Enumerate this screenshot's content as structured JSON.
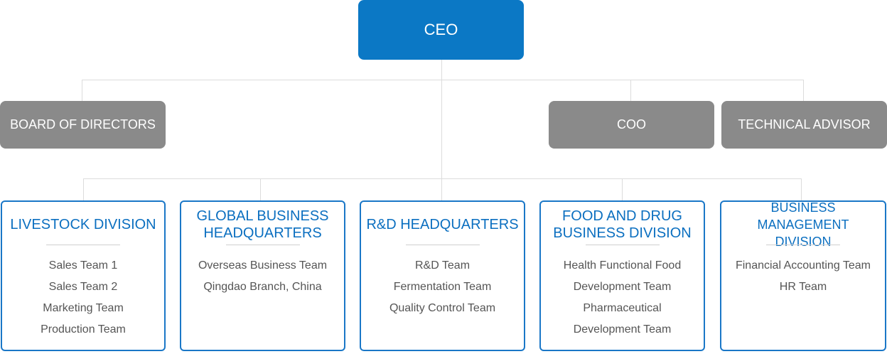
{
  "ceo": "CEO",
  "board": "BOARD OF DIRECTORS",
  "coo": "COO",
  "advisor": "TECHNICAL ADVISOR",
  "divisions": [
    {
      "title_lines": [
        "LIVESTOCK DIVISION"
      ],
      "teams": [
        "Sales Team 1",
        "Sales Team 2",
        "Marketing Team",
        "Production Team"
      ]
    },
    {
      "title_lines": [
        "GLOBAL BUSINESS",
        "HEADQUARTERS"
      ],
      "teams": [
        "Overseas Business Team",
        "Qingdao Branch, China"
      ]
    },
    {
      "title_lines": [
        "R&D HEADQUARTERS"
      ],
      "teams": [
        "R&D Team",
        "Fermentation Team",
        "Quality Control Team"
      ]
    },
    {
      "title_lines": [
        "FOOD AND DRUG",
        "BUSINESS DIVISION"
      ],
      "teams": [
        "Health Functional Food",
        "Development Team",
        "Pharmaceutical",
        "Development Team"
      ]
    },
    {
      "title_lines": [
        "BUSINESS MANAGEMENT",
        "DIVISION"
      ],
      "teams": [
        "Financial Accounting Team",
        "HR Team"
      ]
    }
  ]
}
